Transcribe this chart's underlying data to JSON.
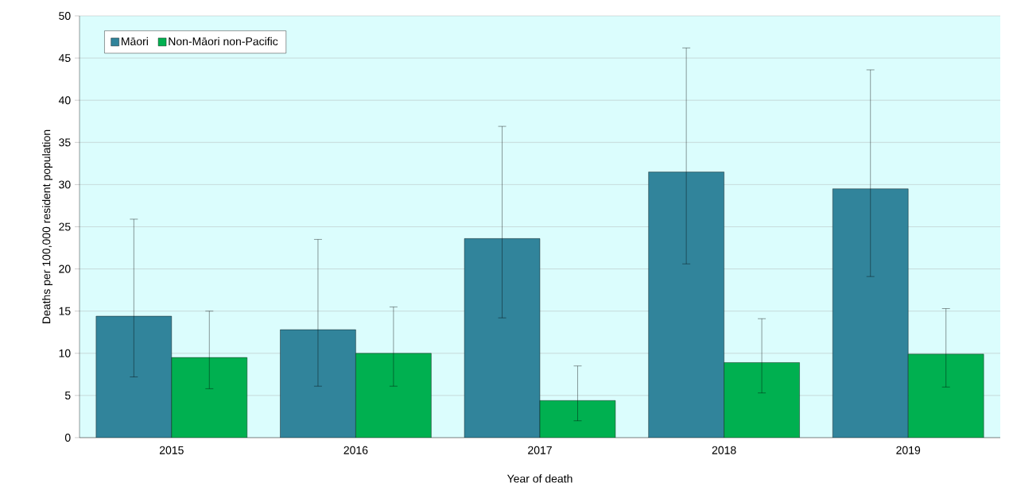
{
  "chart_data": {
    "type": "bar",
    "xlabel": "Year of death",
    "ylabel": "Deaths per 100,000 resident population",
    "categories": [
      "2015",
      "2016",
      "2017",
      "2018",
      "2019"
    ],
    "series": [
      {
        "name": "Māori",
        "color": "#31849b",
        "values": [
          14.4,
          12.8,
          23.6,
          31.5,
          29.5
        ],
        "errors": [
          [
            7.2,
            25.9
          ],
          [
            6.1,
            23.5
          ],
          [
            14.2,
            36.9
          ],
          [
            20.6,
            46.2
          ],
          [
            19.1,
            43.6
          ]
        ]
      },
      {
        "name": "Non-Māori non-Pacific",
        "color": "#00b050",
        "values": [
          9.5,
          10.0,
          4.4,
          8.9,
          9.9
        ],
        "errors": [
          [
            5.8,
            15.0
          ],
          [
            6.1,
            15.5
          ],
          [
            2.0,
            8.5
          ],
          [
            5.3,
            14.1
          ],
          [
            6.0,
            15.3
          ]
        ]
      }
    ],
    "ylim": [
      0,
      50
    ],
    "yticks": [
      0,
      5,
      10,
      15,
      20,
      25,
      30,
      35,
      40,
      45,
      50
    ],
    "grid": "y",
    "legend": "top left"
  }
}
